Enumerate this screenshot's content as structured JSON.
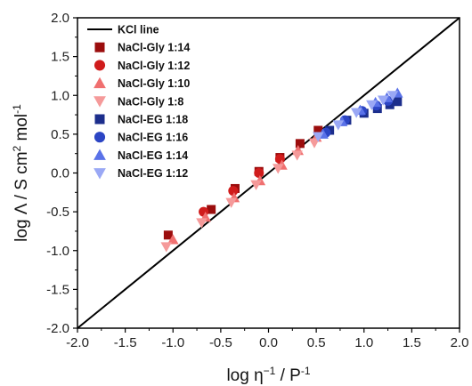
{
  "chart_data": {
    "type": "scatter",
    "xlabel": {
      "main": "log η",
      "sup": "−1",
      "rest": " / P",
      "sup2": "-1"
    },
    "ylabel": {
      "main": "log Λ / S cm",
      "sup": "2",
      "mid": " mol",
      "sup2": "-1"
    },
    "xlim": [
      -2.0,
      2.0
    ],
    "ylim": [
      -2.0,
      2.0
    ],
    "xticks": [
      "-2.0",
      "-1.5",
      "-1.0",
      "-0.5",
      "0.0",
      "0.5",
      "1.0",
      "1.5",
      "2.0"
    ],
    "yticks": [
      "-2.0",
      "-1.5",
      "-1.0",
      "-0.5",
      "0.0",
      "0.5",
      "1.0",
      "1.5",
      "2.0"
    ],
    "legend_position": "top-left",
    "reference_line": {
      "name": "KCl line",
      "x": [
        -2.0,
        2.0
      ],
      "y": [
        -2.0,
        2.0
      ],
      "color": "#000000"
    },
    "series": [
      {
        "name": "NaCl-Gly 1:14",
        "marker": "square",
        "color": "#9b0d0d",
        "x": [
          -1.05,
          -0.6,
          -0.35,
          -0.1,
          0.12,
          0.33,
          0.52
        ],
        "y": [
          -0.8,
          -0.47,
          -0.2,
          0.02,
          0.2,
          0.38,
          0.55
        ]
      },
      {
        "name": "NaCl-Gly 1:12",
        "marker": "circle",
        "color": "#d01c1c",
        "x": [
          -0.68,
          -0.37,
          -0.1,
          0.12
        ],
        "y": [
          -0.5,
          -0.23,
          0.0,
          0.18
        ]
      },
      {
        "name": "NaCl-Gly 1:10",
        "marker": "triangle-up",
        "color": "#f07070",
        "x": [
          -1.0,
          -0.66,
          -0.36,
          -0.09,
          0.14,
          0.31,
          0.5
        ],
        "y": [
          -0.86,
          -0.57,
          -0.32,
          -0.1,
          0.1,
          0.29,
          0.46
        ]
      },
      {
        "name": "NaCl-Gly 1:8",
        "marker": "triangle-down",
        "color": "#f59a9a",
        "x": [
          -1.07,
          -0.7,
          -0.39,
          -0.13,
          0.1,
          0.3,
          0.48
        ],
        "y": [
          -0.95,
          -0.64,
          -0.38,
          -0.15,
          0.06,
          0.23,
          0.39
        ]
      },
      {
        "name": "NaCl-EG 1:18",
        "marker": "square",
        "color": "#1c2e8c",
        "x": [
          0.64,
          0.82,
          1.0,
          1.14,
          1.27,
          1.35
        ],
        "y": [
          0.55,
          0.68,
          0.77,
          0.83,
          0.88,
          0.92
        ]
      },
      {
        "name": "NaCl-EG 1:16",
        "marker": "circle",
        "color": "#2c45c4",
        "x": [
          0.6,
          0.8,
          0.98,
          1.13,
          1.25
        ],
        "y": [
          0.52,
          0.68,
          0.8,
          0.87,
          0.93
        ]
      },
      {
        "name": "NaCl-EG 1:14",
        "marker": "triangle-up",
        "color": "#5a72e8",
        "x": [
          0.57,
          0.77,
          0.96,
          1.12,
          1.24,
          1.35
        ],
        "y": [
          0.5,
          0.66,
          0.81,
          0.91,
          0.97,
          1.03
        ]
      },
      {
        "name": "NaCl-EG 1:12",
        "marker": "triangle-down",
        "color": "#9aa8f5",
        "x": [
          0.52,
          0.73,
          0.92,
          1.08,
          1.2,
          1.3
        ],
        "y": [
          0.47,
          0.62,
          0.78,
          0.88,
          0.94,
          1.0
        ]
      }
    ]
  }
}
